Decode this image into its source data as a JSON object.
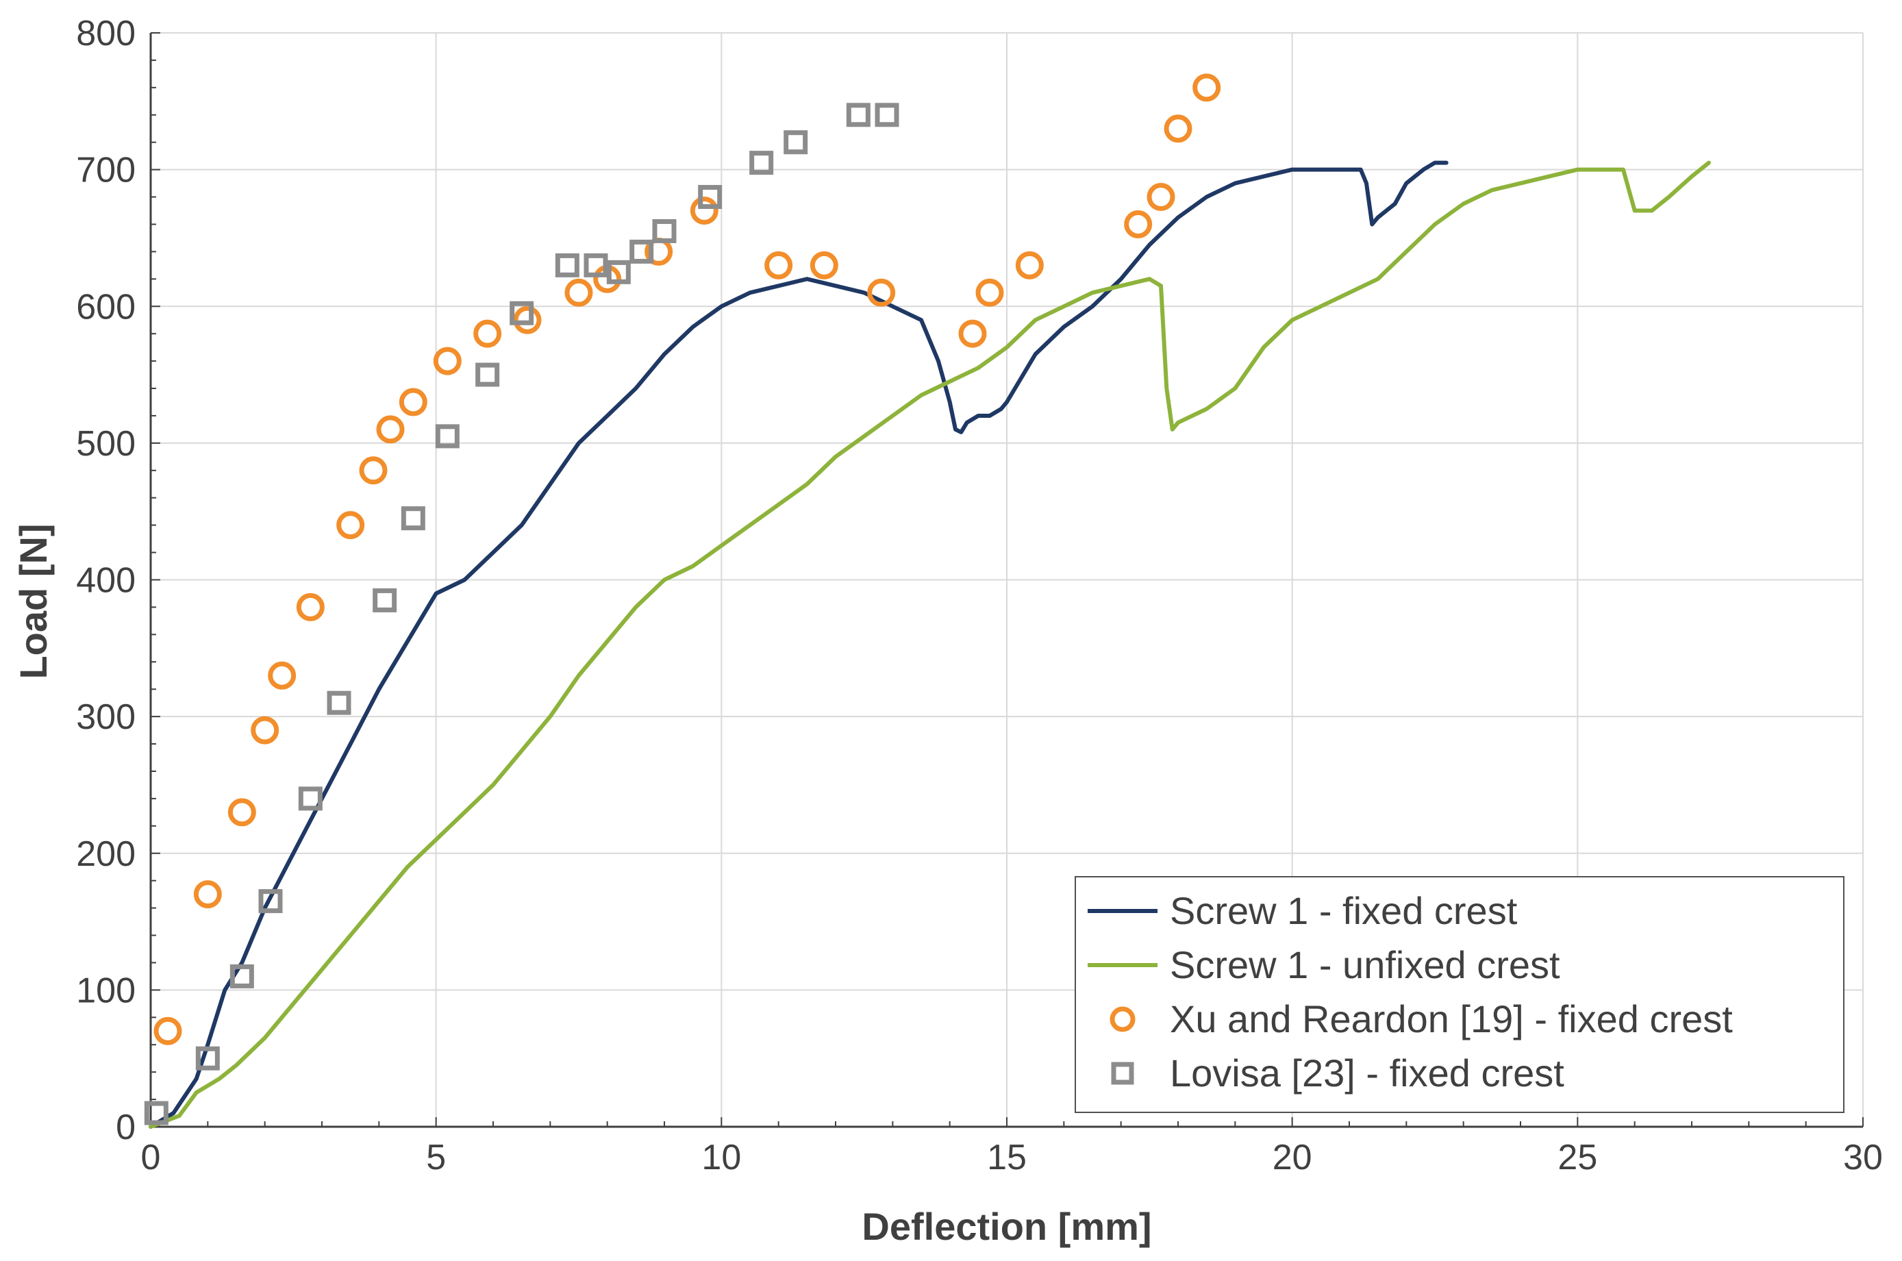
{
  "chart_data": {
    "type": "line",
    "xlabel": "Deflection [mm]",
    "ylabel": "Load [N]",
    "xlim": [
      0,
      30
    ],
    "ylim": [
      0,
      800
    ],
    "xticks": [
      0,
      5,
      10,
      15,
      20,
      25,
      30
    ],
    "yticks": [
      0,
      100,
      200,
      300,
      400,
      500,
      600,
      700,
      800
    ],
    "grid": true,
    "legend_position": "bottom-right",
    "series": [
      {
        "name": "Screw 1 - fixed crest",
        "kind": "line",
        "color": "#1f3864",
        "x": [
          0,
          0.4,
          0.8,
          1.0,
          1.3,
          1.6,
          2.0,
          2.5,
          3.0,
          3.5,
          4.0,
          4.5,
          5.0,
          5.5,
          6.0,
          6.5,
          7.0,
          7.5,
          8.0,
          8.5,
          9.0,
          9.5,
          10.0,
          10.5,
          11.0,
          11.5,
          12.0,
          12.5,
          13.0,
          13.5,
          13.8,
          14.0,
          14.1,
          14.2,
          14.3,
          14.5,
          14.7,
          14.9,
          15.0,
          15.5,
          16.0,
          16.5,
          17.0,
          17.5,
          18.0,
          18.5,
          19.0,
          19.5,
          20.0,
          20.5,
          21.0,
          21.2,
          21.3,
          21.4,
          21.5,
          21.8,
          22.0,
          22.3,
          22.5,
          22.7
        ],
        "y": [
          0,
          10,
          35,
          60,
          100,
          120,
          160,
          200,
          240,
          280,
          320,
          355,
          390,
          400,
          420,
          440,
          470,
          500,
          520,
          540,
          565,
          585,
          600,
          610,
          615,
          620,
          615,
          610,
          600,
          590,
          560,
          530,
          510,
          508,
          515,
          520,
          520,
          525,
          530,
          565,
          585,
          600,
          620,
          645,
          665,
          680,
          690,
          695,
          700,
          700,
          700,
          700,
          690,
          660,
          665,
          675,
          690,
          700,
          705,
          705
        ]
      },
      {
        "name": "Screw 1 - unfixed crest",
        "kind": "line",
        "color": "#8db33b",
        "x": [
          0,
          0.5,
          0.8,
          1.2,
          1.5,
          2.0,
          2.5,
          3.0,
          3.5,
          4.0,
          4.5,
          5.0,
          5.5,
          6.0,
          6.5,
          7.0,
          7.5,
          8.0,
          8.5,
          9.0,
          9.5,
          10.0,
          10.5,
          11.0,
          11.5,
          12.0,
          12.5,
          13.0,
          13.5,
          14.0,
          14.5,
          15.0,
          15.5,
          16.0,
          16.5,
          17.0,
          17.5,
          17.7,
          17.8,
          17.9,
          18.0,
          18.5,
          19.0,
          19.5,
          20.0,
          20.5,
          21.0,
          21.5,
          22.0,
          22.5,
          23.0,
          23.5,
          24.0,
          24.5,
          25.0,
          25.5,
          25.8,
          26.0,
          26.3,
          26.6,
          27.0,
          27.3
        ],
        "y": [
          0,
          8,
          25,
          35,
          45,
          65,
          90,
          115,
          140,
          165,
          190,
          210,
          230,
          250,
          275,
          300,
          330,
          355,
          380,
          400,
          410,
          425,
          440,
          455,
          470,
          490,
          505,
          520,
          535,
          545,
          555,
          570,
          590,
          600,
          610,
          615,
          620,
          615,
          540,
          510,
          515,
          525,
          540,
          570,
          590,
          600,
          610,
          620,
          640,
          660,
          675,
          685,
          690,
          695,
          700,
          700,
          700,
          670,
          670,
          680,
          695,
          705
        ]
      },
      {
        "name": "Xu and Reardon [19] - fixed crest",
        "kind": "scatter",
        "marker": "circle",
        "color": "#f28e2b",
        "x": [
          0.3,
          1.0,
          1.6,
          2.0,
          2.3,
          2.8,
          3.5,
          3.9,
          4.2,
          4.6,
          5.2,
          5.9,
          6.6,
          7.5,
          8.0,
          8.9,
          9.7,
          11.0,
          11.8,
          12.8,
          14.4,
          14.7,
          15.4,
          17.3,
          17.7,
          18.0,
          18.5
        ],
        "y": [
          70,
          170,
          230,
          290,
          330,
          380,
          440,
          480,
          510,
          530,
          560,
          580,
          590,
          610,
          620,
          640,
          670,
          630,
          630,
          610,
          580,
          610,
          630,
          660,
          680,
          730,
          760
        ]
      },
      {
        "name": "Lovisa  [23] - fixed crest",
        "kind": "scatter",
        "marker": "square",
        "color": "#8c8c8c",
        "x": [
          0.1,
          1.0,
          1.6,
          2.1,
          2.8,
          3.3,
          4.1,
          4.6,
          5.2,
          5.9,
          6.5,
          7.3,
          7.8,
          8.2,
          8.6,
          9.0,
          9.8,
          10.7,
          11.3,
          12.4,
          12.9
        ],
        "y": [
          10,
          50,
          110,
          165,
          240,
          310,
          385,
          445,
          505,
          550,
          595,
          630,
          630,
          625,
          640,
          655,
          680,
          705,
          720,
          740,
          740
        ]
      }
    ]
  }
}
